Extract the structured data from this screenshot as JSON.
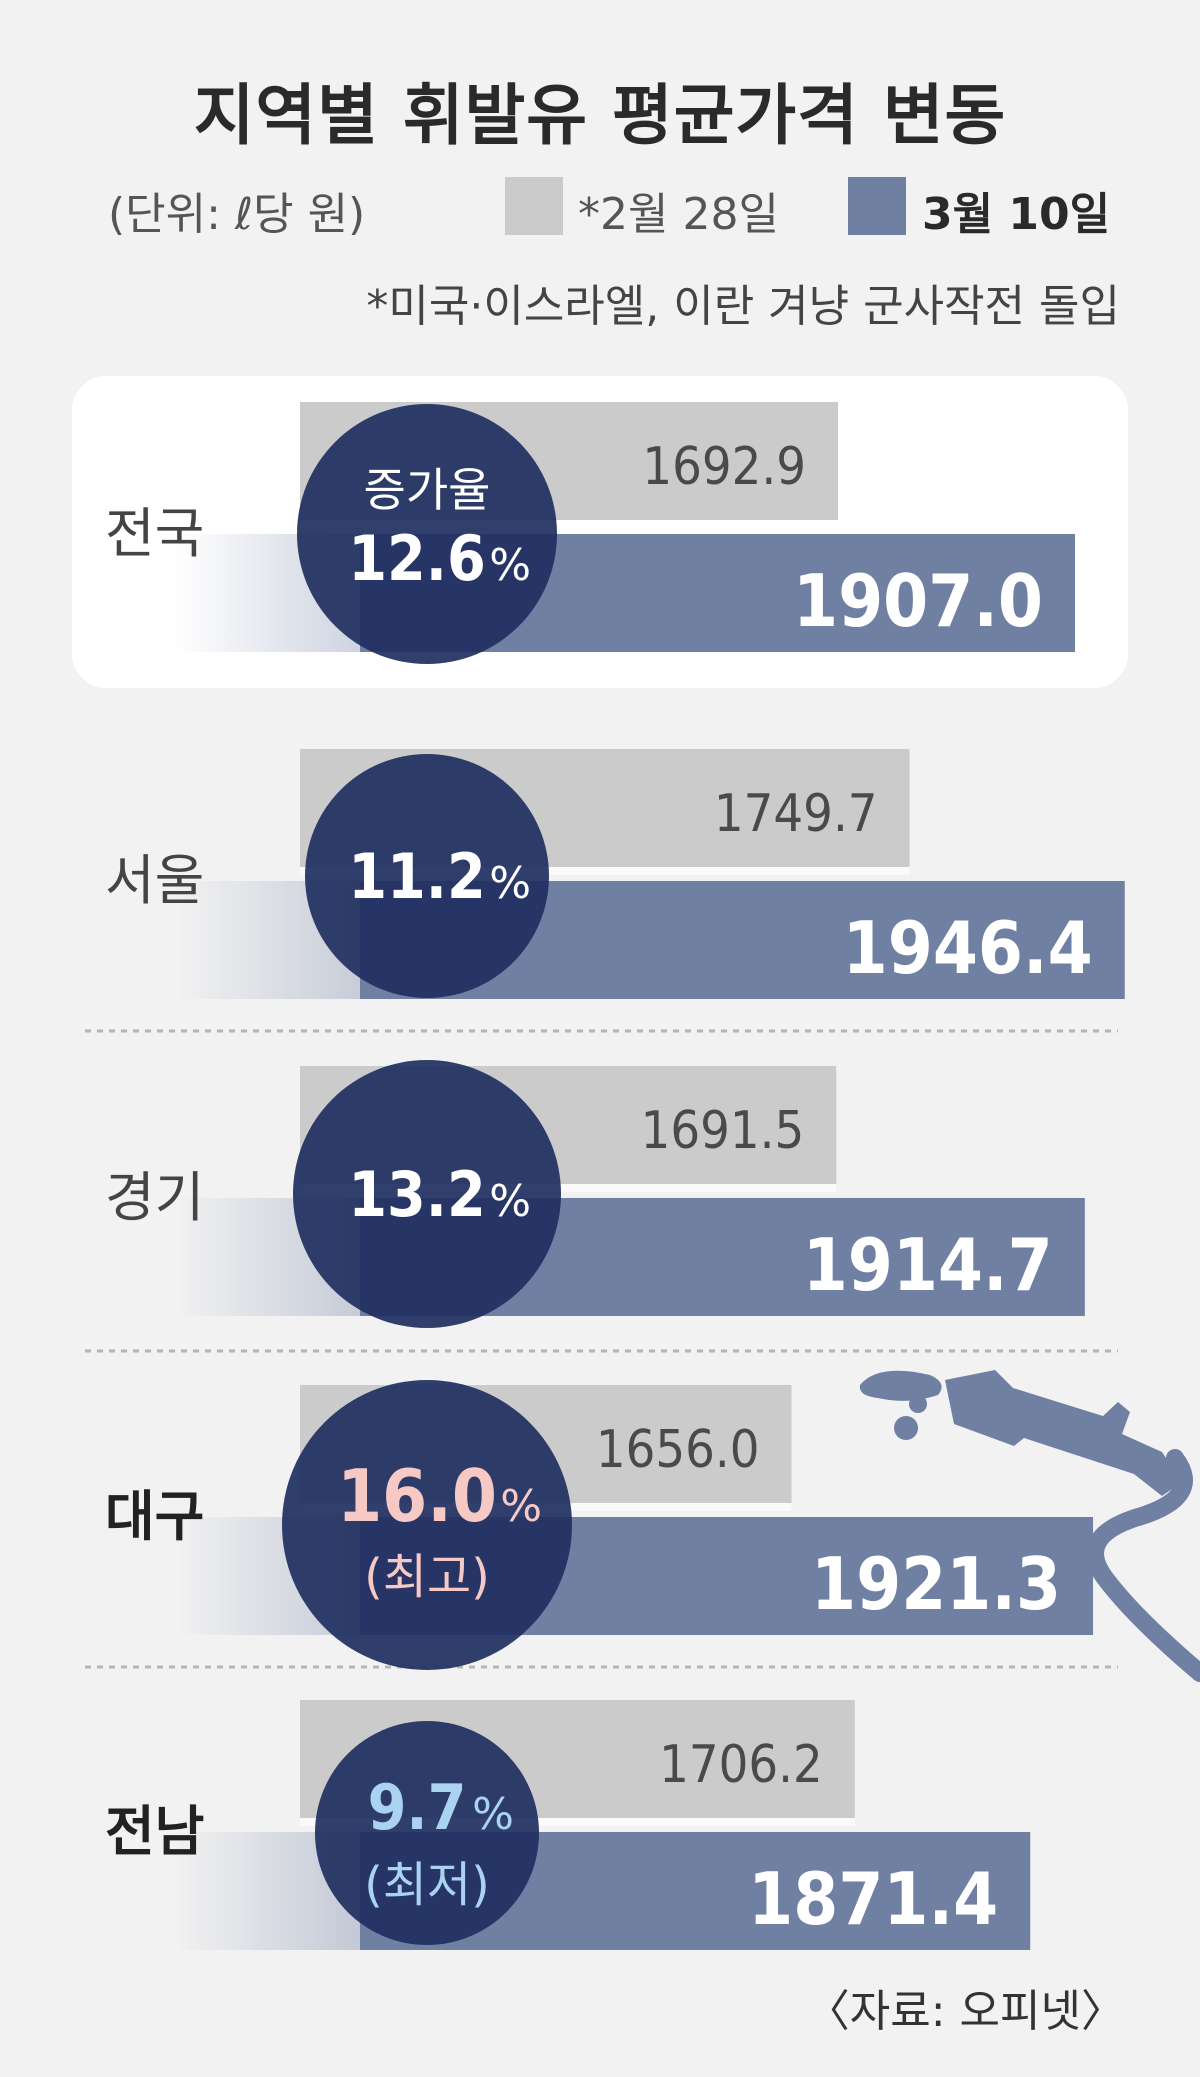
{
  "title": "지역별 휘발유 평균가격 변동",
  "unit": "(단위: ℓ당 원)",
  "legend": {
    "before": "*2월 28일",
    "after": "3월 10일",
    "before_color": "#cbcbcb",
    "after_color": "#6f80a3"
  },
  "footnote": "*미국·이스라엘, 이란 겨냥 군사작전 돌입",
  "source": "〈자료: 오피넷〉",
  "colors": {
    "circle": "#1f2f5f",
    "highest": "#f6c9c4",
    "lowest": "#a9d3f0"
  },
  "chart_data": {
    "type": "bar",
    "categories": [
      "전국",
      "서울",
      "경기",
      "대구",
      "전남"
    ],
    "series": [
      {
        "name": "*2월 28일",
        "values": [
          1692.9,
          1749.7,
          1691.5,
          1656.0,
          1706.2
        ]
      },
      {
        "name": "3월 10일",
        "values": [
          1907.0,
          1946.4,
          1914.7,
          1921.3,
          1871.4
        ]
      }
    ],
    "increase_label": "증가율",
    "increase_rates": [
      "12.6",
      "11.2",
      "13.2",
      "16.0",
      "9.7"
    ],
    "percent_sign": "%",
    "annotations": [
      "",
      "",
      "",
      "(최고)",
      "(최저)"
    ],
    "xlim": [
      1000,
      2000
    ]
  }
}
